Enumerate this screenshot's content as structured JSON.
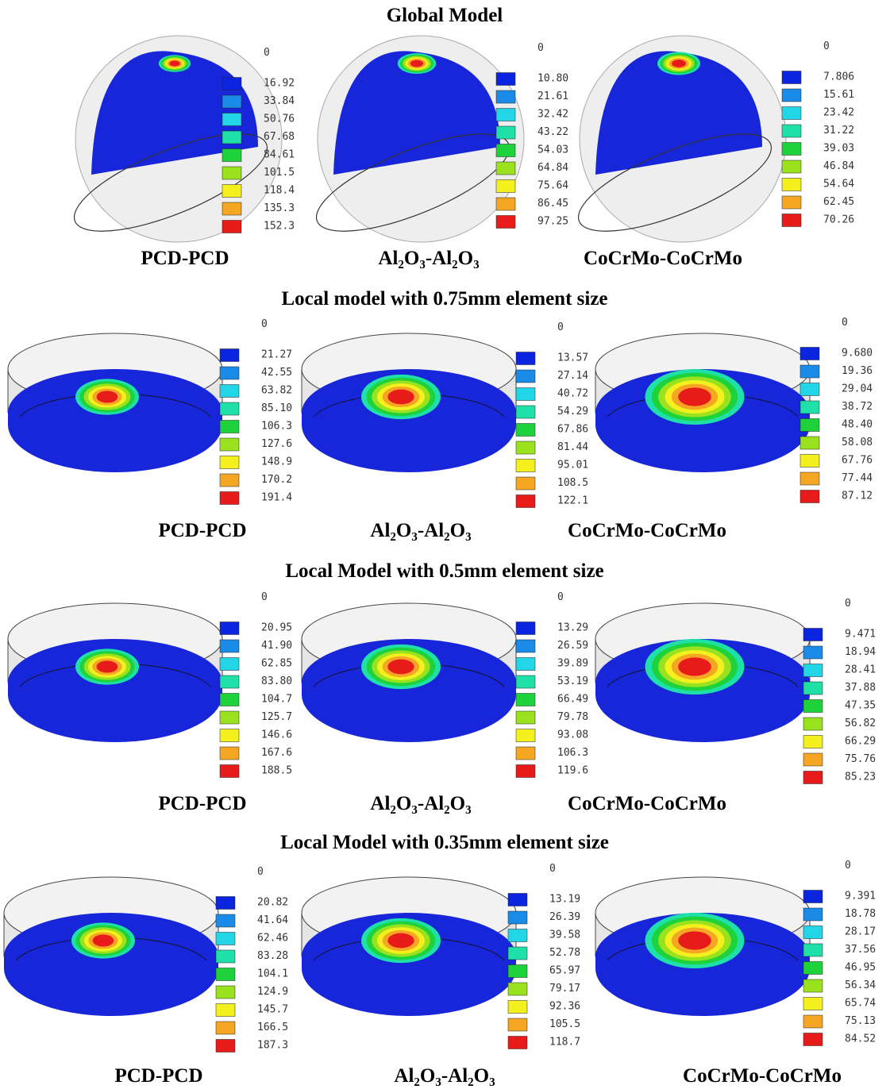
{
  "sections": [
    {
      "title": "Global Model",
      "panels": [
        {
          "label": "PCD-PCD",
          "legend": [
            "0",
            "16.92",
            "33.84",
            "50.76",
            "67.68",
            "84.61",
            "101.5",
            "118.4",
            "135.3",
            "152.3"
          ]
        },
        {
          "label": "Al₂O₃-Al₂O₃",
          "legend": [
            "0",
            "10.80",
            "21.61",
            "32.42",
            "43.22",
            "54.03",
            "64.84",
            "75.64",
            "86.45",
            "97.25"
          ]
        },
        {
          "label": "CoCrMo-CoCrMo",
          "legend": [
            "0",
            "7.806",
            "15.61",
            "23.42",
            "31.22",
            "39.03",
            "46.84",
            "54.64",
            "62.45",
            "70.26"
          ]
        }
      ]
    },
    {
      "title": "Local model with 0.75mm element size",
      "panels": [
        {
          "label": "PCD-PCD",
          "legend": [
            "0",
            "21.27",
            "42.55",
            "63.82",
            "85.10",
            "106.3",
            "127.6",
            "148.9",
            "170.2",
            "191.4"
          ]
        },
        {
          "label": "Al₂O₃-Al₂O₃",
          "legend": [
            "0",
            "13.57",
            "27.14",
            "40.72",
            "54.29",
            "67.86",
            "81.44",
            "95.01",
            "108.5",
            "122.1"
          ]
        },
        {
          "label": "CoCrMo-CoCrMo",
          "legend": [
            "0",
            "9.680",
            "19.36",
            "29.04",
            "38.72",
            "48.40",
            "58.08",
            "67.76",
            "77.44",
            "87.12"
          ]
        }
      ]
    },
    {
      "title": "Local Model with 0.5mm element size",
      "panels": [
        {
          "label": "PCD-PCD",
          "legend": [
            "0",
            "20.95",
            "41.90",
            "62.85",
            "83.80",
            "104.7",
            "125.7",
            "146.6",
            "167.6",
            "188.5"
          ]
        },
        {
          "label": "Al₂O₃-Al₂O₃",
          "legend": [
            "0",
            "13.29",
            "26.59",
            "39.89",
            "53.19",
            "66.49",
            "79.78",
            "93.08",
            "106.3",
            "119.6"
          ]
        },
        {
          "label": "CoCrMo-CoCrMo",
          "legend": [
            "0",
            "9.471",
            "18.94",
            "28.41",
            "37.88",
            "47.35",
            "56.82",
            "66.29",
            "75.76",
            "85.23"
          ]
        }
      ]
    },
    {
      "title": "Local Model with 0.35mm element size",
      "panels": [
        {
          "label": "PCD-PCD",
          "legend": [
            "0",
            "20.82",
            "41.64",
            "62.46",
            "83.28",
            "104.1",
            "124.9",
            "145.7",
            "166.5",
            "187.3"
          ]
        },
        {
          "label": "Al₂O₃-Al₂O₃",
          "legend": [
            "0",
            "13.19",
            "26.39",
            "39.58",
            "52.78",
            "65.97",
            "79.17",
            "92.36",
            "105.5",
            "118.7"
          ]
        },
        {
          "label": "CoCrMo-CoCrMo",
          "legend": [
            "0",
            "9.391",
            "18.78",
            "28.17",
            "37.56",
            "46.95",
            "56.34",
            "65.74",
            "75.13",
            "84.52"
          ]
        }
      ]
    }
  ]
}
